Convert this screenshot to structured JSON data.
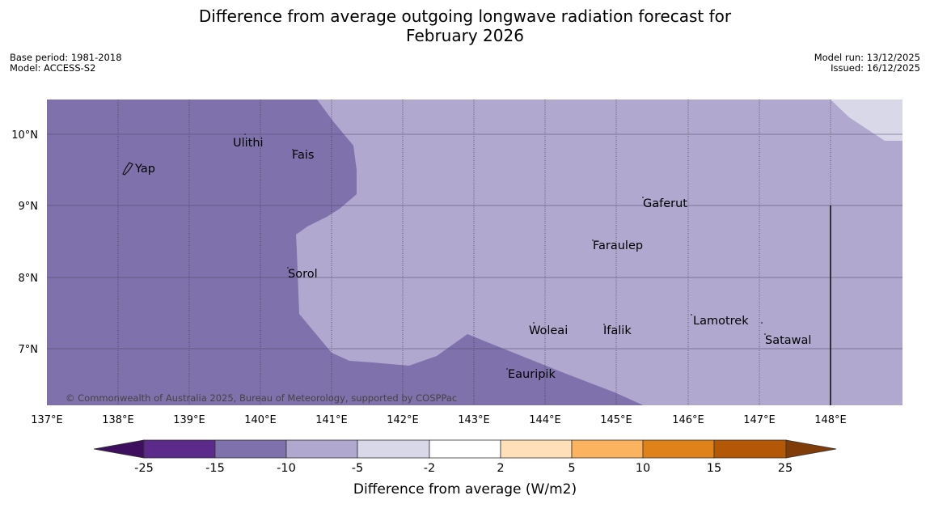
{
  "title_line1": "Difference from average outgoing longwave radiation forecast for",
  "title_line2": "February 2026",
  "meta": {
    "base_period": "Base period: 1981-2018",
    "model": "Model: ACCESS-S2",
    "model_run": "Model run: 13/12/2025",
    "issued": "Issued: 16/12/2025"
  },
  "map": {
    "lon_labels": [
      "137°E",
      "138°E",
      "139°E",
      "140°E",
      "141°E",
      "142°E",
      "143°E",
      "144°E",
      "145°E",
      "146°E",
      "147°E",
      "148°E"
    ],
    "lat_labels": [
      "10°N",
      "9°N",
      "8°N",
      "7°N"
    ],
    "places": [
      "Yap",
      "Ulithi",
      "Fais",
      "Gaferut",
      "Faraulep",
      "Sorol",
      "Woleai",
      "Ifalik",
      "Lamotrek",
      "Satawal",
      "Eauripik"
    ],
    "copyright": "© Commonwealth of Australia 2025, Bureau of Meteorology, supported by COSPPac"
  },
  "legend": {
    "ticks": [
      "-25",
      "-15",
      "-10",
      "-5",
      "-2",
      "2",
      "5",
      "10",
      "15",
      "25"
    ],
    "label": "Difference from average (W/m2)",
    "colors": [
      "#3f0f5f",
      "#5b2a8a",
      "#7f71ab",
      "#b0a8cf",
      "#d8d8e9",
      "#ffffff",
      "#fedfb8",
      "#fbb35f",
      "#e0821a",
      "#b35806",
      "#7f3b08"
    ]
  }
}
